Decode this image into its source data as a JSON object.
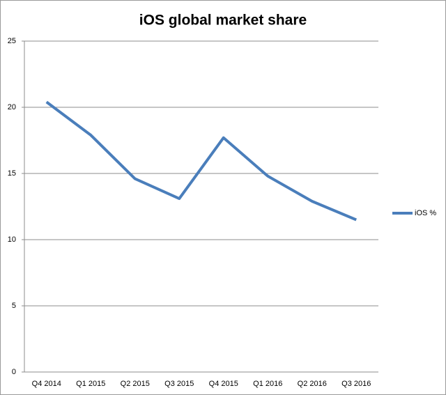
{
  "chart_data": {
    "type": "line",
    "title": "iOS global market share",
    "categories": [
      "Q4 2014",
      "Q1 2015",
      "Q2 2015",
      "Q3 2015",
      "Q4 2015",
      "Q1 2016",
      "Q2 2016",
      "Q3 2016"
    ],
    "series": [
      {
        "name": "iOS %",
        "color": "#4a7ebb",
        "values": [
          20.4,
          17.9,
          14.6,
          13.1,
          17.7,
          14.8,
          12.9,
          11.5
        ]
      }
    ],
    "ylim": [
      0,
      25
    ],
    "yticks": [
      0,
      5,
      10,
      15,
      20,
      25
    ],
    "grid": true,
    "legend": "right"
  }
}
